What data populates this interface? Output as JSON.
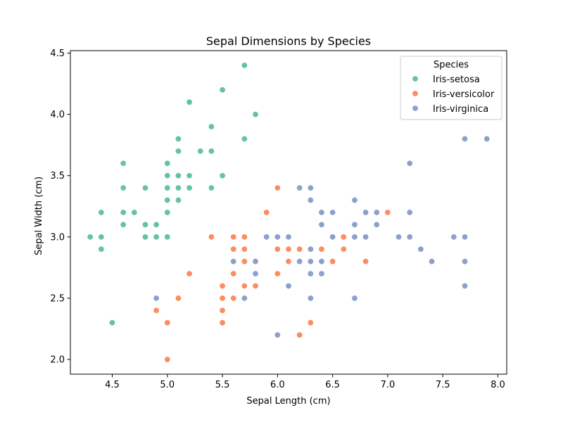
{
  "chart_data": {
    "type": "scatter",
    "title": "Sepal Dimensions by Species",
    "xlabel": "Sepal Length (cm)",
    "ylabel": "Sepal Width (cm)",
    "xlim": [
      4.12,
      8.08
    ],
    "ylim": [
      1.88,
      4.52
    ],
    "xticks": [
      4.5,
      5.0,
      5.5,
      6.0,
      6.5,
      7.0,
      7.5,
      8.0
    ],
    "yticks": [
      2.0,
      2.5,
      3.0,
      3.5,
      4.0,
      4.5
    ],
    "grid": false,
    "legend": {
      "title": "Species",
      "placement": "top-right"
    },
    "series": [
      {
        "name": "Iris-setosa",
        "color": "#66c2a5",
        "points": [
          [
            5.1,
            3.5
          ],
          [
            4.9,
            3.0
          ],
          [
            4.7,
            3.2
          ],
          [
            4.6,
            3.1
          ],
          [
            5.0,
            3.6
          ],
          [
            5.4,
            3.9
          ],
          [
            4.6,
            3.4
          ],
          [
            5.0,
            3.4
          ],
          [
            4.4,
            2.9
          ],
          [
            4.9,
            3.1
          ],
          [
            5.4,
            3.7
          ],
          [
            4.8,
            3.4
          ],
          [
            4.8,
            3.0
          ],
          [
            4.3,
            3.0
          ],
          [
            5.8,
            4.0
          ],
          [
            5.7,
            4.4
          ],
          [
            5.4,
            3.9
          ],
          [
            5.1,
            3.5
          ],
          [
            5.7,
            3.8
          ],
          [
            5.1,
            3.8
          ],
          [
            5.4,
            3.4
          ],
          [
            5.1,
            3.7
          ],
          [
            4.6,
            3.6
          ],
          [
            5.1,
            3.3
          ],
          [
            4.8,
            3.4
          ],
          [
            5.0,
            3.0
          ],
          [
            5.0,
            3.4
          ],
          [
            5.2,
            3.5
          ],
          [
            5.2,
            3.4
          ],
          [
            4.7,
            3.2
          ],
          [
            4.8,
            3.1
          ],
          [
            5.4,
            3.4
          ],
          [
            5.2,
            4.1
          ],
          [
            5.5,
            4.2
          ],
          [
            4.9,
            3.1
          ],
          [
            5.0,
            3.2
          ],
          [
            5.5,
            3.5
          ],
          [
            4.9,
            3.1
          ],
          [
            4.4,
            3.0
          ],
          [
            5.1,
            3.4
          ],
          [
            5.0,
            3.5
          ],
          [
            4.5,
            2.3
          ],
          [
            4.4,
            3.2
          ],
          [
            5.0,
            3.5
          ],
          [
            5.1,
            3.8
          ],
          [
            4.8,
            3.0
          ],
          [
            5.1,
            3.8
          ],
          [
            4.6,
            3.2
          ],
          [
            5.3,
            3.7
          ],
          [
            5.0,
            3.3
          ]
        ]
      },
      {
        "name": "Iris-versicolor",
        "color": "#fc8d62",
        "points": [
          [
            7.0,
            3.2
          ],
          [
            6.4,
            3.2
          ],
          [
            6.9,
            3.1
          ],
          [
            5.5,
            2.3
          ],
          [
            6.5,
            2.8
          ],
          [
            5.7,
            2.8
          ],
          [
            6.3,
            3.3
          ],
          [
            4.9,
            2.4
          ],
          [
            6.6,
            2.9
          ],
          [
            5.2,
            2.7
          ],
          [
            5.0,
            2.0
          ],
          [
            5.9,
            3.0
          ],
          [
            6.0,
            2.2
          ],
          [
            6.1,
            2.9
          ],
          [
            5.6,
            2.9
          ],
          [
            6.7,
            3.1
          ],
          [
            5.6,
            3.0
          ],
          [
            5.8,
            2.7
          ],
          [
            6.2,
            2.2
          ],
          [
            5.6,
            2.5
          ],
          [
            5.9,
            3.2
          ],
          [
            6.1,
            2.8
          ],
          [
            6.3,
            2.5
          ],
          [
            6.1,
            2.8
          ],
          [
            6.4,
            2.9
          ],
          [
            6.6,
            3.0
          ],
          [
            6.8,
            2.8
          ],
          [
            6.7,
            3.0
          ],
          [
            6.0,
            2.9
          ],
          [
            5.7,
            2.6
          ],
          [
            5.5,
            2.4
          ],
          [
            5.5,
            2.4
          ],
          [
            5.8,
            2.7
          ],
          [
            6.0,
            2.7
          ],
          [
            5.4,
            3.0
          ],
          [
            6.0,
            3.4
          ],
          [
            6.7,
            3.1
          ],
          [
            6.3,
            2.3
          ],
          [
            5.6,
            3.0
          ],
          [
            5.5,
            2.5
          ],
          [
            5.5,
            2.6
          ],
          [
            6.1,
            3.0
          ],
          [
            5.8,
            2.6
          ],
          [
            5.0,
            2.3
          ],
          [
            5.6,
            2.7
          ],
          [
            5.7,
            3.0
          ],
          [
            5.7,
            2.9
          ],
          [
            6.2,
            2.9
          ],
          [
            5.1,
            2.5
          ],
          [
            5.7,
            2.8
          ]
        ]
      },
      {
        "name": "Iris-virginica",
        "color": "#8da0cb",
        "points": [
          [
            6.3,
            3.3
          ],
          [
            5.8,
            2.7
          ],
          [
            7.1,
            3.0
          ],
          [
            6.3,
            2.9
          ],
          [
            6.5,
            3.0
          ],
          [
            7.6,
            3.0
          ],
          [
            4.9,
            2.5
          ],
          [
            7.3,
            2.9
          ],
          [
            6.7,
            2.5
          ],
          [
            7.2,
            3.6
          ],
          [
            6.5,
            3.2
          ],
          [
            6.4,
            2.7
          ],
          [
            6.8,
            3.0
          ],
          [
            5.7,
            2.5
          ],
          [
            5.8,
            2.8
          ],
          [
            6.4,
            3.2
          ],
          [
            6.5,
            3.0
          ],
          [
            7.7,
            3.8
          ],
          [
            7.7,
            2.6
          ],
          [
            6.0,
            2.2
          ],
          [
            6.9,
            3.2
          ],
          [
            5.6,
            2.8
          ],
          [
            7.7,
            2.8
          ],
          [
            6.3,
            2.7
          ],
          [
            6.7,
            3.3
          ],
          [
            7.2,
            3.2
          ],
          [
            6.2,
            2.8
          ],
          [
            6.1,
            3.0
          ],
          [
            6.4,
            2.8
          ],
          [
            7.2,
            3.0
          ],
          [
            7.4,
            2.8
          ],
          [
            7.9,
            3.8
          ],
          [
            6.4,
            2.8
          ],
          [
            6.3,
            2.8
          ],
          [
            6.1,
            2.6
          ],
          [
            7.7,
            3.0
          ],
          [
            6.3,
            3.4
          ],
          [
            6.4,
            3.1
          ],
          [
            6.0,
            3.0
          ],
          [
            6.9,
            3.1
          ],
          [
            6.7,
            3.1
          ],
          [
            6.9,
            3.1
          ],
          [
            5.8,
            2.7
          ],
          [
            6.8,
            3.2
          ],
          [
            6.7,
            3.3
          ],
          [
            6.7,
            3.0
          ],
          [
            6.3,
            2.5
          ],
          [
            6.5,
            3.0
          ],
          [
            6.2,
            3.4
          ],
          [
            5.9,
            3.0
          ]
        ]
      }
    ]
  }
}
